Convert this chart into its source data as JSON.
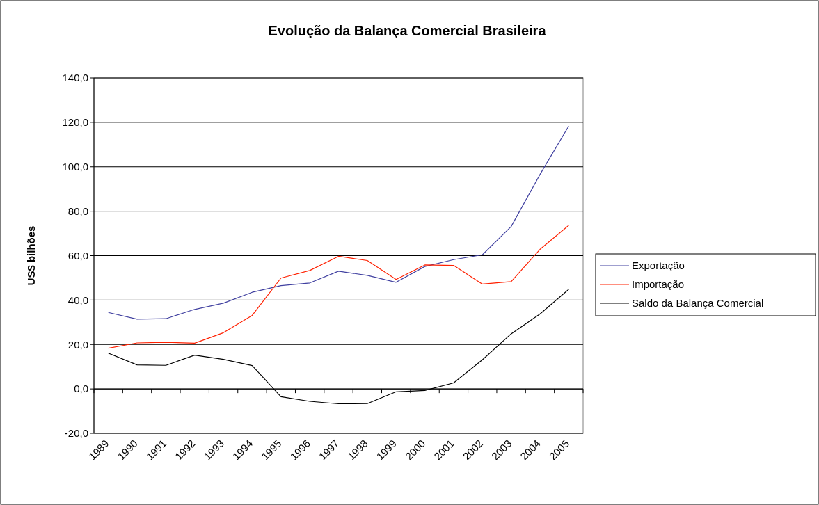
{
  "chart_data": {
    "type": "line",
    "title": "Evolução da Balança Comercial Brasileira",
    "ylabel": "US$ bilhões",
    "categories": [
      "1989",
      "1990",
      "1991",
      "1992",
      "1993",
      "1994",
      "1995",
      "1996",
      "1997",
      "1998",
      "1999",
      "2000",
      "2001",
      "2002",
      "2003",
      "2004",
      "2005"
    ],
    "ylim": [
      -20,
      140
    ],
    "yticks": [
      {
        "value": -20,
        "label": "-20,0"
      },
      {
        "value": 0,
        "label": "0,0"
      },
      {
        "value": 20,
        "label": "20,0"
      },
      {
        "value": 40,
        "label": "40,0"
      },
      {
        "value": 60,
        "label": "60,0"
      },
      {
        "value": 80,
        "label": "80,0"
      },
      {
        "value": 100,
        "label": "100,0"
      },
      {
        "value": 120,
        "label": "120,0"
      },
      {
        "value": 140,
        "label": "140,0"
      }
    ],
    "grid": "y",
    "legend": "right",
    "marker": "none",
    "line_style": "solid",
    "series": [
      {
        "name": "Exportação",
        "color": "#4040a0",
        "values": [
          34.4,
          31.4,
          31.6,
          35.8,
          38.6,
          43.5,
          46.5,
          47.7,
          53.0,
          51.1,
          48.0,
          55.1,
          58.2,
          60.4,
          73.1,
          96.5,
          118.3
        ]
      },
      {
        "name": "Importação",
        "color": "#ff2000",
        "values": [
          18.3,
          20.7,
          21.0,
          20.6,
          25.3,
          33.1,
          49.9,
          53.3,
          59.7,
          57.8,
          49.3,
          55.8,
          55.6,
          47.2,
          48.3,
          62.8,
          73.6
        ]
      },
      {
        "name": "Saldo da Balança Comercial",
        "color": "#000000",
        "values": [
          16.1,
          10.8,
          10.6,
          15.2,
          13.3,
          10.5,
          -3.5,
          -5.6,
          -6.7,
          -6.6,
          -1.3,
          -0.7,
          2.7,
          13.1,
          24.8,
          33.7,
          44.8
        ]
      }
    ]
  }
}
